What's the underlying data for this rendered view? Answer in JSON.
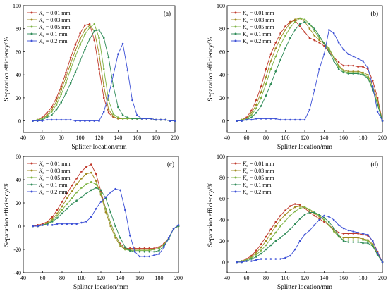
{
  "chart_data": [
    {
      "type": "line",
      "panel_label": "(a)",
      "xlabel": "Splitter location/mm",
      "ylabel": "Separation efficiency/%",
      "xlim": [
        40,
        200
      ],
      "ylim": [
        -10,
        100
      ],
      "xticks": [
        40,
        60,
        80,
        100,
        120,
        140,
        160,
        180,
        200
      ],
      "yticks": [
        0,
        20,
        40,
        60,
        80,
        100
      ],
      "legend_position": "top-left",
      "x": [
        50,
        55,
        60,
        65,
        70,
        75,
        80,
        85,
        90,
        95,
        100,
        105,
        110,
        115,
        120,
        125,
        130,
        135,
        140,
        145,
        150,
        155,
        160,
        165,
        170,
        175,
        180,
        185,
        190,
        195,
        200
      ],
      "series": [
        {
          "name": "Ks = 0.01 mm",
          "color": "#c0392b",
          "values": [
            0,
            1,
            3,
            7,
            12,
            20,
            30,
            42,
            55,
            66,
            76,
            83,
            84,
            70,
            45,
            20,
            7,
            3,
            2,
            2,
            2,
            2,
            2,
            2,
            2,
            2,
            1,
            1,
            1,
            0,
            0
          ]
        },
        {
          "name": "Ks = 0.03 mm",
          "color": "#9e8a1e",
          "values": [
            0,
            1,
            2,
            5,
            10,
            17,
            27,
            38,
            50,
            61,
            71,
            79,
            83,
            78,
            58,
            30,
            10,
            4,
            2,
            2,
            2,
            2,
            2,
            2,
            2,
            2,
            1,
            1,
            1,
            0,
            0
          ]
        },
        {
          "name": "Ks = 0.05 mm",
          "color": "#7cb342",
          "values": [
            0,
            1,
            2,
            4,
            8,
            14,
            23,
            33,
            45,
            56,
            66,
            75,
            81,
            84,
            72,
            45,
            18,
            6,
            3,
            2,
            2,
            2,
            2,
            2,
            2,
            2,
            1,
            1,
            1,
            0,
            0
          ]
        },
        {
          "name": "Ks = 0.1 mm",
          "color": "#2e8b57",
          "values": [
            0,
            0,
            1,
            3,
            5,
            10,
            16,
            24,
            33,
            42,
            52,
            62,
            71,
            78,
            79,
            72,
            55,
            30,
            12,
            5,
            3,
            2,
            2,
            2,
            2,
            2,
            1,
            1,
            1,
            0,
            0
          ]
        },
        {
          "name": "Ks = 0.2 mm",
          "color": "#3b4fd6",
          "values": [
            0,
            0,
            0,
            1,
            1,
            1,
            1,
            1,
            1,
            0,
            0,
            0,
            0,
            0,
            0,
            8,
            22,
            40,
            58,
            67,
            44,
            18,
            5,
            2,
            2,
            2,
            1,
            1,
            1,
            0,
            0
          ]
        }
      ]
    },
    {
      "type": "line",
      "panel_label": "(b)",
      "xlabel": "Splitter location/mm",
      "ylabel": "Separation efficiency/%",
      "xlim": [
        40,
        200
      ],
      "ylim": [
        -10,
        100
      ],
      "xticks": [
        40,
        60,
        80,
        100,
        120,
        140,
        160,
        180,
        200
      ],
      "yticks": [
        0,
        20,
        40,
        60,
        80,
        100
      ],
      "legend_position": "top-left",
      "x": [
        50,
        55,
        60,
        65,
        70,
        75,
        80,
        85,
        90,
        95,
        100,
        105,
        110,
        115,
        120,
        125,
        130,
        135,
        140,
        145,
        150,
        155,
        160,
        165,
        170,
        175,
        180,
        185,
        190,
        195,
        200
      ],
      "series": [
        {
          "name": "Ks = 0.01 mm",
          "color": "#c0392b",
          "values": [
            0,
            1,
            3,
            9,
            18,
            30,
            45,
            58,
            68,
            76,
            82,
            86,
            87,
            82,
            77,
            72,
            70,
            68,
            65,
            60,
            55,
            51,
            48,
            48,
            48,
            47,
            47,
            45,
            35,
            20,
            0
          ]
        },
        {
          "name": "Ks = 0.03 mm",
          "color": "#9e8a1e",
          "values": [
            0,
            1,
            2,
            7,
            14,
            25,
            38,
            52,
            63,
            72,
            79,
            85,
            88,
            89,
            86,
            80,
            74,
            70,
            67,
            62,
            55,
            48,
            44,
            43,
            43,
            43,
            42,
            40,
            30,
            18,
            0
          ]
        },
        {
          "name": "Ks = 0.05 mm",
          "color": "#7cb342",
          "values": [
            0,
            1,
            2,
            5,
            11,
            20,
            32,
            45,
            56,
            66,
            74,
            81,
            86,
            89,
            88,
            84,
            78,
            72,
            68,
            63,
            55,
            47,
            43,
            42,
            42,
            42,
            41,
            38,
            28,
            15,
            0
          ]
        },
        {
          "name": "Ks = 0.1 mm",
          "color": "#2e8b57",
          "values": [
            0,
            0,
            1,
            3,
            7,
            13,
            22,
            32,
            43,
            53,
            63,
            72,
            79,
            84,
            86,
            84,
            80,
            74,
            67,
            60,
            52,
            45,
            42,
            41,
            41,
            41,
            40,
            37,
            27,
            14,
            0
          ]
        },
        {
          "name": "Ks = 0.2 mm",
          "color": "#3b4fd6",
          "values": [
            0,
            0,
            1,
            1,
            2,
            2,
            2,
            2,
            2,
            1,
            1,
            1,
            1,
            1,
            1,
            10,
            27,
            45,
            58,
            79,
            76,
            68,
            62,
            58,
            56,
            54,
            52,
            46,
            30,
            8,
            0
          ]
        }
      ]
    },
    {
      "type": "line",
      "panel_label": "(c)",
      "xlabel": "Splitter location/mm",
      "ylabel": "Separation efficiency/%",
      "xlim": [
        40,
        200
      ],
      "ylim": [
        -40,
        60
      ],
      "xticks": [
        40,
        60,
        80,
        100,
        120,
        140,
        160,
        180,
        200
      ],
      "yticks": [
        -40,
        -20,
        0,
        20,
        40,
        60
      ],
      "legend_position": "top-left",
      "x": [
        50,
        55,
        60,
        65,
        70,
        75,
        80,
        85,
        90,
        95,
        100,
        105,
        110,
        115,
        120,
        125,
        130,
        135,
        140,
        145,
        150,
        155,
        160,
        165,
        170,
        175,
        180,
        185,
        190,
        195,
        200
      ],
      "series": [
        {
          "name": "Ks = 0.01 mm",
          "color": "#c0392b",
          "values": [
            0,
            1,
            2,
            4,
            8,
            14,
            21,
            28,
            35,
            41,
            47,
            51,
            53,
            45,
            30,
            15,
            3,
            -8,
            -15,
            -19,
            -19,
            -19,
            -19,
            -19,
            -19,
            -19,
            -18,
            -15,
            -10,
            -2,
            0
          ]
        },
        {
          "name": "Ks = 0.03 mm",
          "color": "#9e8a1e",
          "values": [
            0,
            0,
            1,
            3,
            6,
            11,
            17,
            24,
            30,
            36,
            41,
            45,
            46,
            39,
            27,
            12,
            0,
            -10,
            -17,
            -20,
            -20,
            -20,
            -20,
            -20,
            -20,
            -20,
            -19,
            -16,
            -10,
            -2,
            0
          ]
        },
        {
          "name": "Ks = 0.05 mm",
          "color": "#7cb342",
          "values": [
            0,
            0,
            1,
            2,
            5,
            9,
            14,
            19,
            24,
            29,
            33,
            36,
            38,
            36,
            28,
            15,
            3,
            -8,
            -16,
            -20,
            -21,
            -21,
            -21,
            -21,
            -21,
            -20,
            -19,
            -16,
            -10,
            -2,
            0
          ]
        },
        {
          "name": "Ks = 0.1 mm",
          "color": "#2e8b57",
          "values": [
            0,
            0,
            1,
            2,
            4,
            7,
            11,
            15,
            19,
            22,
            25,
            28,
            31,
            33,
            31,
            24,
            12,
            0,
            -10,
            -18,
            -21,
            -22,
            -22,
            -22,
            -22,
            -22,
            -21,
            -17,
            -11,
            -2,
            0
          ]
        },
        {
          "name": "Ks = 0.2 mm",
          "color": "#3b4fd6",
          "values": [
            0,
            0,
            1,
            1,
            1,
            2,
            2,
            2,
            2,
            2,
            3,
            4,
            8,
            15,
            21,
            25,
            29,
            32,
            31,
            14,
            -8,
            -22,
            -26,
            -26,
            -26,
            -25,
            -24,
            -18,
            -10,
            -2,
            1
          ]
        }
      ]
    },
    {
      "type": "line",
      "panel_label": "(d)",
      "xlabel": "Splitter location/mm",
      "ylabel": "Separation efficiency/%",
      "xlim": [
        40,
        200
      ],
      "ylim": [
        -10,
        100
      ],
      "xticks": [
        40,
        60,
        80,
        100,
        120,
        140,
        160,
        180,
        200
      ],
      "yticks": [
        0,
        20,
        40,
        60,
        80,
        100
      ],
      "legend_position": "top-left",
      "x": [
        50,
        55,
        60,
        65,
        70,
        75,
        80,
        85,
        90,
        95,
        100,
        105,
        110,
        115,
        120,
        125,
        130,
        135,
        140,
        145,
        150,
        155,
        160,
        165,
        170,
        175,
        180,
        185,
        190,
        195,
        200
      ],
      "series": [
        {
          "name": "Ks = 0.01 mm",
          "color": "#c0392b",
          "values": [
            0,
            1,
            3,
            6,
            11,
            17,
            24,
            31,
            38,
            44,
            49,
            53,
            55,
            54,
            51,
            47,
            44,
            41,
            38,
            35,
            31,
            28,
            27,
            27,
            27,
            27,
            26,
            25,
            20,
            10,
            0
          ]
        },
        {
          "name": "Ks = 0.03 mm",
          "color": "#9e8a1e",
          "values": [
            0,
            1,
            2,
            5,
            9,
            14,
            20,
            27,
            34,
            40,
            45,
            49,
            52,
            53,
            52,
            49,
            46,
            43,
            40,
            35,
            30,
            25,
            23,
            23,
            23,
            23,
            22,
            21,
            17,
            8,
            0
          ]
        },
        {
          "name": "Ks = 0.05 mm",
          "color": "#7cb342",
          "values": [
            0,
            1,
            2,
            4,
            7,
            11,
            16,
            22,
            28,
            34,
            39,
            44,
            48,
            51,
            52,
            50,
            47,
            44,
            40,
            35,
            29,
            24,
            21,
            21,
            21,
            21,
            21,
            20,
            16,
            7,
            0
          ]
        },
        {
          "name": "Ks = 0.1 mm",
          "color": "#2e8b57",
          "values": [
            0,
            0,
            1,
            3,
            5,
            8,
            12,
            16,
            20,
            23,
            27,
            31,
            36,
            41,
            45,
            47,
            47,
            45,
            42,
            38,
            32,
            25,
            20,
            19,
            19,
            19,
            18,
            18,
            15,
            7,
            0
          ]
        },
        {
          "name": "Ks = 0.2 mm",
          "color": "#3b4fd6",
          "values": [
            0,
            0,
            1,
            1,
            2,
            3,
            3,
            3,
            3,
            3,
            4,
            6,
            12,
            20,
            26,
            30,
            35,
            40,
            44,
            43,
            40,
            35,
            32,
            30,
            29,
            28,
            27,
            26,
            20,
            9,
            0
          ]
        }
      ]
    }
  ]
}
